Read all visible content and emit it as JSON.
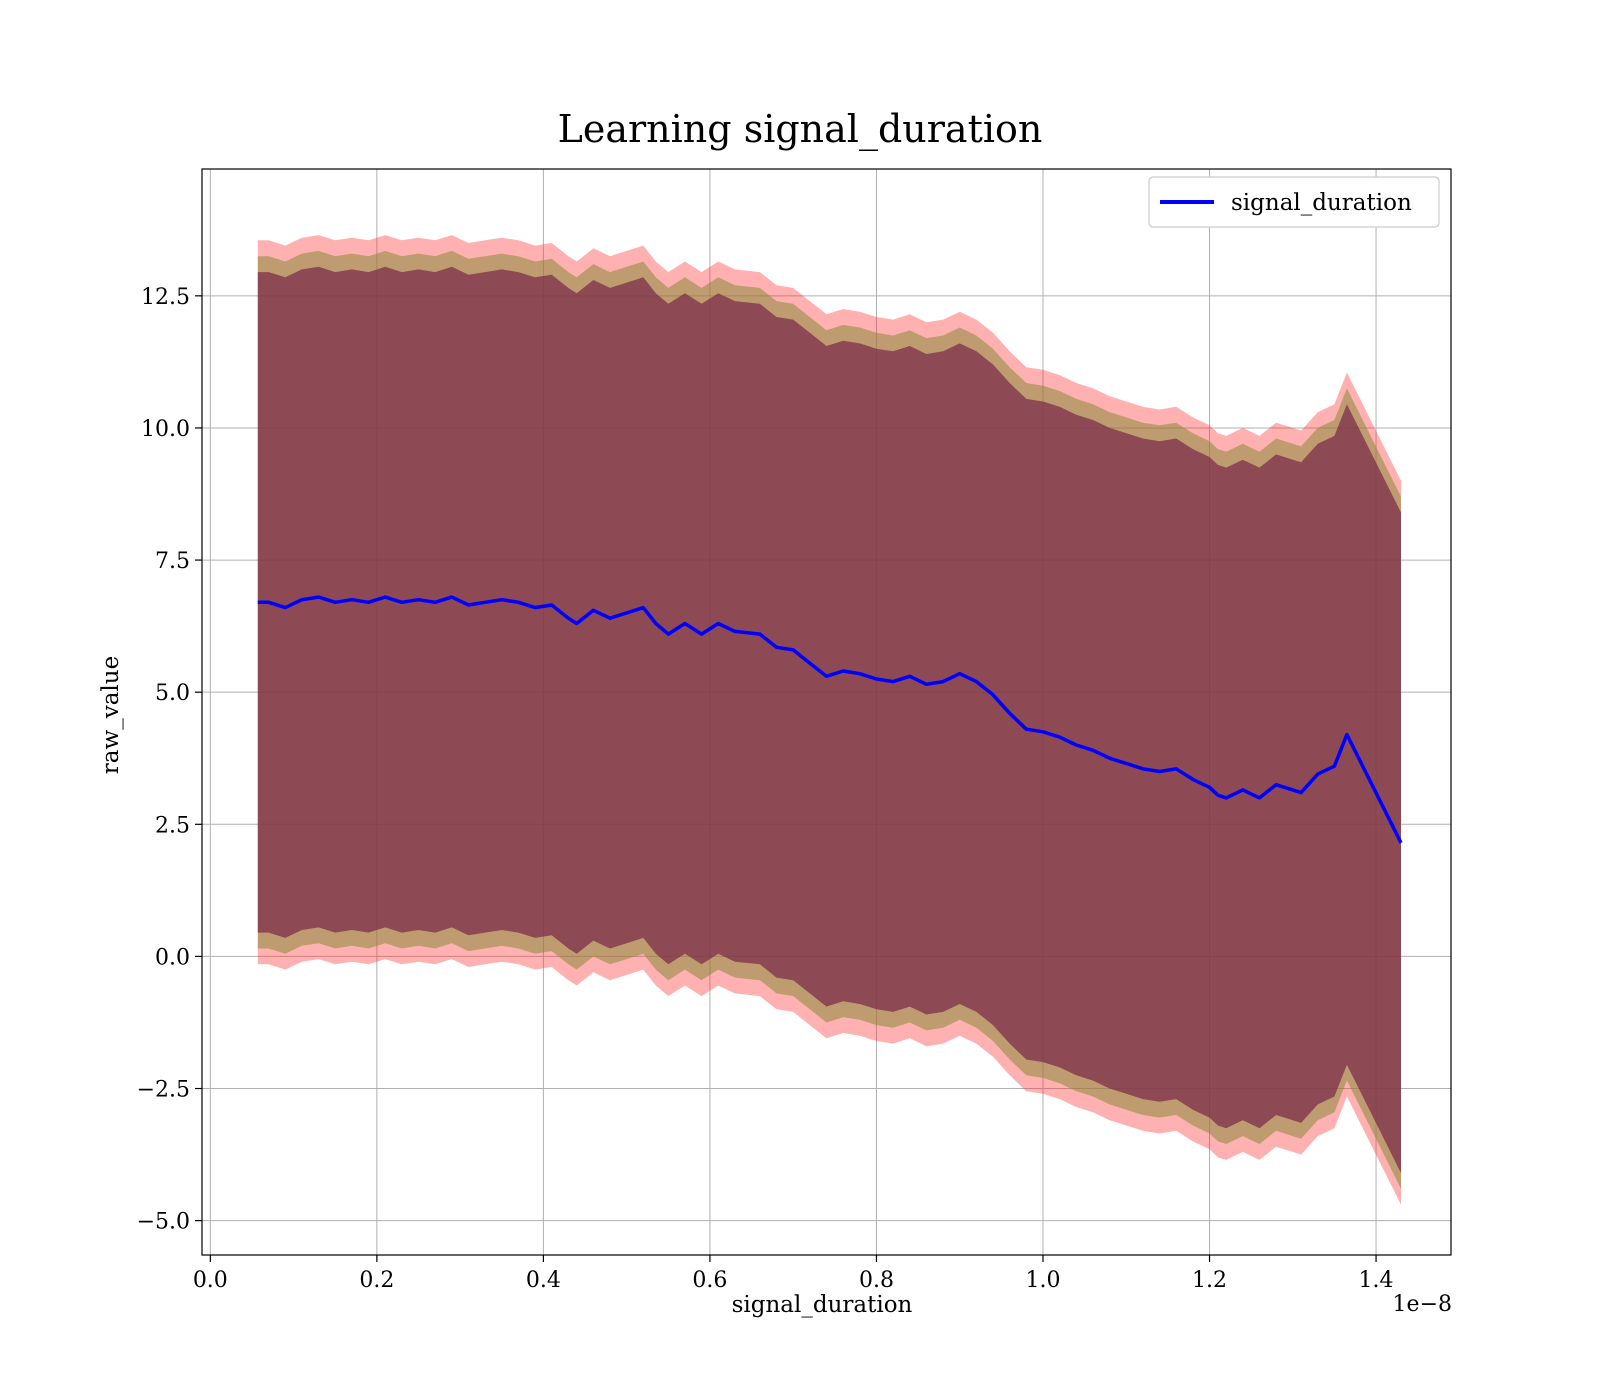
{
  "chart_data": {
    "type": "line",
    "title": "Learning signal_duration",
    "xlabel": "signal_duration",
    "ylabel": "raw_value",
    "x_offset_text": "1e−8",
    "xlim": [
      -0.01,
      1.49
    ],
    "ylim": [
      -5.65,
      14.9
    ],
    "xticks": [
      0.0,
      0.2,
      0.4,
      0.6,
      0.8,
      1.0,
      1.2,
      1.4
    ],
    "xtick_labels": [
      "0.0",
      "0.2",
      "0.4",
      "0.6",
      "0.8",
      "1.0",
      "1.2",
      "1.4"
    ],
    "yticks": [
      -5.0,
      -2.5,
      0.0,
      2.5,
      5.0,
      7.5,
      10.0,
      12.5
    ],
    "ytick_labels": [
      "−5.0",
      "−2.5",
      "0.0",
      "2.5",
      "5.0",
      "7.5",
      "10.0",
      "12.5"
    ],
    "grid": true,
    "legend_position": "top-right",
    "colors": {
      "line": "#0000ff",
      "band_outer": "#ff3333",
      "band_mid": "#8b8b3a",
      "band_inner": "#7a2a4a",
      "grid": "#b0b0b0"
    },
    "series": [
      {
        "name": "signal_duration",
        "x": [
          0.057,
          0.07,
          0.09,
          0.11,
          0.13,
          0.15,
          0.17,
          0.19,
          0.21,
          0.23,
          0.25,
          0.27,
          0.29,
          0.31,
          0.33,
          0.35,
          0.37,
          0.39,
          0.41,
          0.43,
          0.44,
          0.46,
          0.48,
          0.5,
          0.52,
          0.535,
          0.55,
          0.57,
          0.59,
          0.61,
          0.63,
          0.66,
          0.68,
          0.7,
          0.72,
          0.74,
          0.76,
          0.78,
          0.8,
          0.82,
          0.84,
          0.86,
          0.88,
          0.9,
          0.92,
          0.94,
          0.96,
          0.98,
          1.0,
          1.02,
          1.04,
          1.06,
          1.08,
          1.1,
          1.12,
          1.14,
          1.16,
          1.18,
          1.2,
          1.21,
          1.22,
          1.24,
          1.26,
          1.28,
          1.3,
          1.31,
          1.33,
          1.35,
          1.365,
          1.43
        ],
        "y": [
          6.7,
          6.7,
          6.6,
          6.75,
          6.8,
          6.7,
          6.75,
          6.7,
          6.8,
          6.7,
          6.75,
          6.7,
          6.8,
          6.65,
          6.7,
          6.75,
          6.7,
          6.6,
          6.65,
          6.4,
          6.3,
          6.55,
          6.4,
          6.5,
          6.6,
          6.3,
          6.1,
          6.3,
          6.1,
          6.3,
          6.15,
          6.1,
          5.85,
          5.8,
          5.55,
          5.3,
          5.4,
          5.35,
          5.25,
          5.2,
          5.3,
          5.15,
          5.2,
          5.35,
          5.2,
          4.95,
          4.6,
          4.3,
          4.25,
          4.15,
          4.0,
          3.9,
          3.75,
          3.65,
          3.55,
          3.5,
          3.55,
          3.35,
          3.2,
          3.05,
          3.0,
          3.15,
          3.0,
          3.25,
          3.15,
          3.1,
          3.45,
          3.6,
          4.2,
          2.15
        ]
      }
    ],
    "bands": [
      {
        "name": "outer",
        "half_width": 6.85
      },
      {
        "name": "middle",
        "half_width": 6.55
      },
      {
        "name": "inner",
        "half_width": 6.25
      }
    ]
  }
}
